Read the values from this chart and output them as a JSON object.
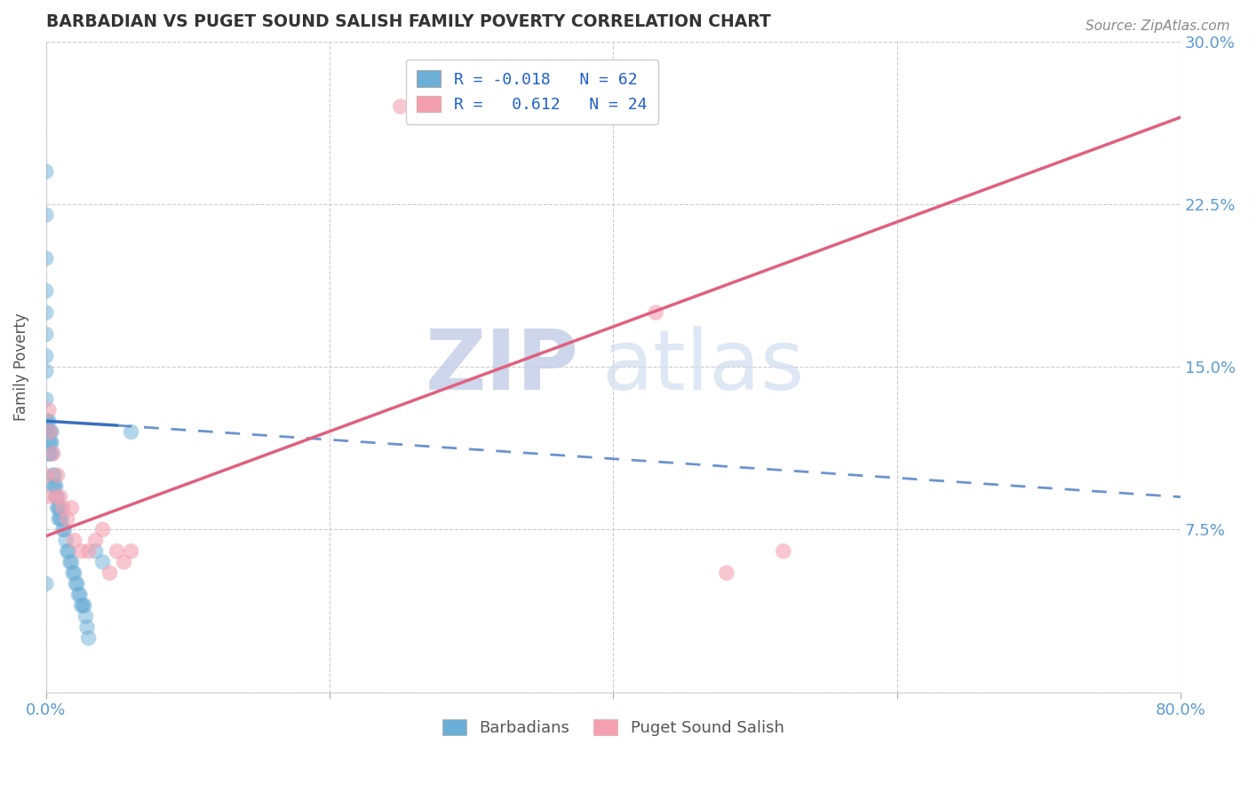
{
  "title": "BARBADIAN VS PUGET SOUND SALISH FAMILY POVERTY CORRELATION CHART",
  "source": "Source: ZipAtlas.com",
  "ylabel": "Family Poverty",
  "xlim": [
    0.0,
    0.8
  ],
  "ylim": [
    0.0,
    0.3
  ],
  "blue_R": -0.018,
  "blue_N": 62,
  "pink_R": 0.612,
  "pink_N": 24,
  "blue_color": "#6baed6",
  "pink_color": "#f4a0b0",
  "blue_line_color": "#3a6fbe",
  "pink_line_color": "#e06080",
  "watermark_zip": "ZIP",
  "watermark_atlas": "atlas",
  "blue_scatter_x": [
    0.0,
    0.0,
    0.0,
    0.0,
    0.0,
    0.0,
    0.0,
    0.0,
    0.0,
    0.0,
    0.0,
    0.0,
    0.0,
    0.0,
    0.0,
    0.002,
    0.002,
    0.002,
    0.002,
    0.003,
    0.003,
    0.003,
    0.004,
    0.004,
    0.004,
    0.005,
    0.005,
    0.006,
    0.006,
    0.007,
    0.007,
    0.008,
    0.008,
    0.009,
    0.009,
    0.01,
    0.01,
    0.011,
    0.012,
    0.013,
    0.014,
    0.015,
    0.016,
    0.017,
    0.018,
    0.019,
    0.02,
    0.021,
    0.022,
    0.023,
    0.024,
    0.025,
    0.026,
    0.027,
    0.028,
    0.029,
    0.03,
    0.035,
    0.04,
    0.06,
    0.0,
    0.001
  ],
  "blue_scatter_y": [
    0.24,
    0.22,
    0.2,
    0.185,
    0.175,
    0.165,
    0.155,
    0.148,
    0.135,
    0.125,
    0.12,
    0.12,
    0.12,
    0.12,
    0.12,
    0.125,
    0.12,
    0.115,
    0.11,
    0.12,
    0.115,
    0.11,
    0.12,
    0.115,
    0.11,
    0.1,
    0.095,
    0.1,
    0.095,
    0.095,
    0.09,
    0.09,
    0.085,
    0.085,
    0.08,
    0.085,
    0.08,
    0.08,
    0.075,
    0.075,
    0.07,
    0.065,
    0.065,
    0.06,
    0.06,
    0.055,
    0.055,
    0.05,
    0.05,
    0.045,
    0.045,
    0.04,
    0.04,
    0.04,
    0.035,
    0.03,
    0.025,
    0.065,
    0.06,
    0.12,
    0.05,
    0.125
  ],
  "pink_scatter_x": [
    0.0,
    0.0,
    0.002,
    0.003,
    0.005,
    0.007,
    0.008,
    0.01,
    0.012,
    0.015,
    0.018,
    0.02,
    0.025,
    0.03,
    0.035,
    0.04,
    0.045,
    0.05,
    0.055,
    0.06,
    0.25,
    0.43,
    0.48,
    0.52
  ],
  "pink_scatter_y": [
    0.1,
    0.09,
    0.13,
    0.12,
    0.11,
    0.09,
    0.1,
    0.09,
    0.085,
    0.08,
    0.085,
    0.07,
    0.065,
    0.065,
    0.07,
    0.075,
    0.055,
    0.065,
    0.06,
    0.065,
    0.27,
    0.175,
    0.055,
    0.065
  ],
  "blue_line_x0": 0.0,
  "blue_line_x_solid_end": 0.05,
  "blue_line_x_dashed_end": 0.8,
  "blue_line_y0": 0.125,
  "blue_line_y_solid_end": 0.123,
  "blue_line_y_dashed_end": 0.09,
  "pink_line_x0": 0.0,
  "pink_line_x_end": 0.8,
  "pink_line_y0": 0.072,
  "pink_line_y_end": 0.265
}
